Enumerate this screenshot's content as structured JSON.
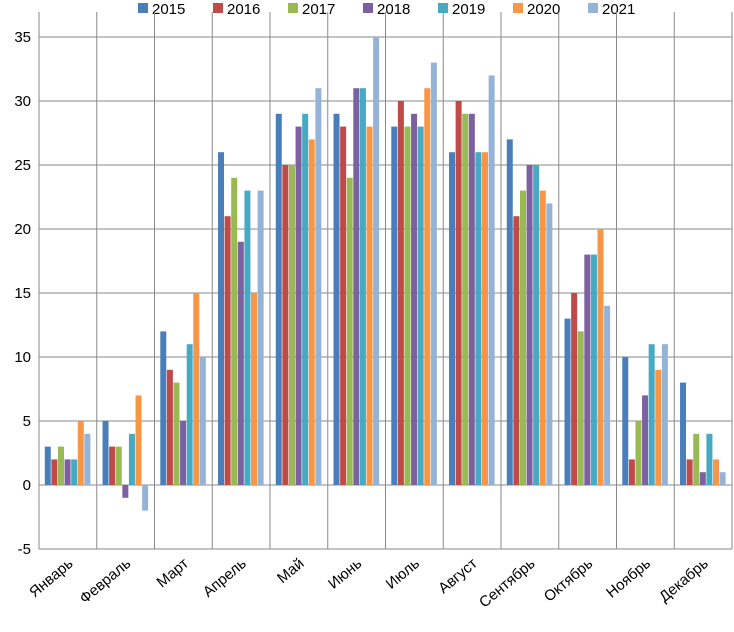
{
  "chart_data": {
    "type": "bar",
    "title": "",
    "xlabel": "",
    "ylabel": "",
    "ylim": [
      -5,
      35
    ],
    "yticks": [
      -5,
      0,
      5,
      10,
      15,
      20,
      25,
      30,
      35
    ],
    "grid": "horizontal",
    "legend_position": "top",
    "categories": [
      "Январь",
      "Февраль",
      "Март",
      "Апрель",
      "Май",
      "Июнь",
      "Июль",
      "Август",
      "Сентябрь",
      "Октябрь",
      "Ноябрь",
      "Декабрь"
    ],
    "series": [
      {
        "name": "2015",
        "color": "#4A7EBB",
        "values": [
          3,
          5,
          12,
          26,
          29,
          29,
          28,
          26,
          27,
          13,
          10,
          8
        ]
      },
      {
        "name": "2016",
        "color": "#BE4B48",
        "values": [
          2,
          3,
          9,
          21,
          25,
          28,
          30,
          30,
          21,
          15,
          2,
          2
        ]
      },
      {
        "name": "2017",
        "color": "#98B954",
        "values": [
          3,
          3,
          8,
          24,
          25,
          24,
          28,
          29,
          23,
          12,
          5,
          4
        ]
      },
      {
        "name": "2018",
        "color": "#7D60A0",
        "values": [
          2,
          -1,
          5,
          19,
          28,
          31,
          29,
          29,
          25,
          18,
          7,
          1
        ]
      },
      {
        "name": "2019",
        "color": "#46AAC5",
        "values": [
          2,
          4,
          11,
          23,
          29,
          31,
          28,
          26,
          25,
          18,
          11,
          4
        ]
      },
      {
        "name": "2020",
        "color": "#F79646",
        "values": [
          5,
          7,
          15,
          15,
          27,
          28,
          31,
          26,
          23,
          20,
          9,
          2
        ]
      },
      {
        "name": "2021",
        "color": "#95B3D7",
        "values": [
          4,
          -2,
          10,
          23,
          31,
          35,
          33,
          32,
          22,
          14,
          11,
          1
        ]
      }
    ]
  }
}
